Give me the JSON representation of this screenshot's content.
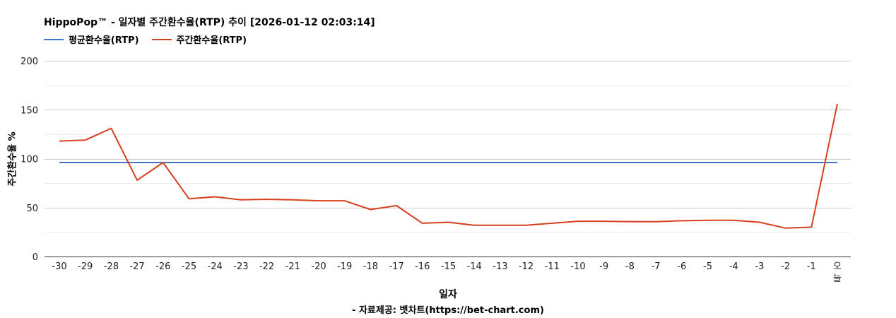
{
  "chart_data": {
    "type": "line",
    "title": "HippoPop™ - 일자별 주간환수율(RTP) 추이 [2026-01-12 02:03:14]",
    "xlabel": "일자",
    "ylabel": "주간환수율 %",
    "source": "- 자료제공: 벳차트(https://bet-chart.com)",
    "categories": [
      "-30",
      "-29",
      "-28",
      "-27",
      "-26",
      "-25",
      "-24",
      "-23",
      "-22",
      "-21",
      "-20",
      "-19",
      "-18",
      "-17",
      "-16",
      "-15",
      "-14",
      "-13",
      "-12",
      "-11",
      "-10",
      "-9",
      "-8",
      "-7",
      "-6",
      "-5",
      "-4",
      "-3",
      "-2",
      "-1",
      "오늘"
    ],
    "yticks": [
      0,
      50,
      100,
      150,
      200
    ],
    "ylim": [
      0,
      200
    ],
    "grid": true,
    "legend_position": "top-left",
    "series": [
      {
        "name": "평균환수율(RTP)",
        "color": "#4472c4",
        "values": [
          96,
          96,
          96,
          96,
          96,
          96,
          96,
          96,
          96,
          96,
          96,
          96,
          96,
          96,
          96,
          96,
          96,
          96,
          96,
          96,
          96,
          96,
          96,
          96,
          96,
          96,
          96,
          96,
          96,
          96,
          96
        ]
      },
      {
        "name": "주간환수율(RTP)",
        "color": "#d6401f",
        "values": [
          118,
          119,
          131,
          78,
          96,
          59,
          61,
          58,
          58.5,
          58,
          57,
          57,
          48,
          52,
          34,
          35,
          32,
          32,
          32,
          34,
          36,
          36,
          35.7,
          35.5,
          36.5,
          37,
          37,
          35,
          29,
          30,
          156
        ]
      }
    ]
  }
}
